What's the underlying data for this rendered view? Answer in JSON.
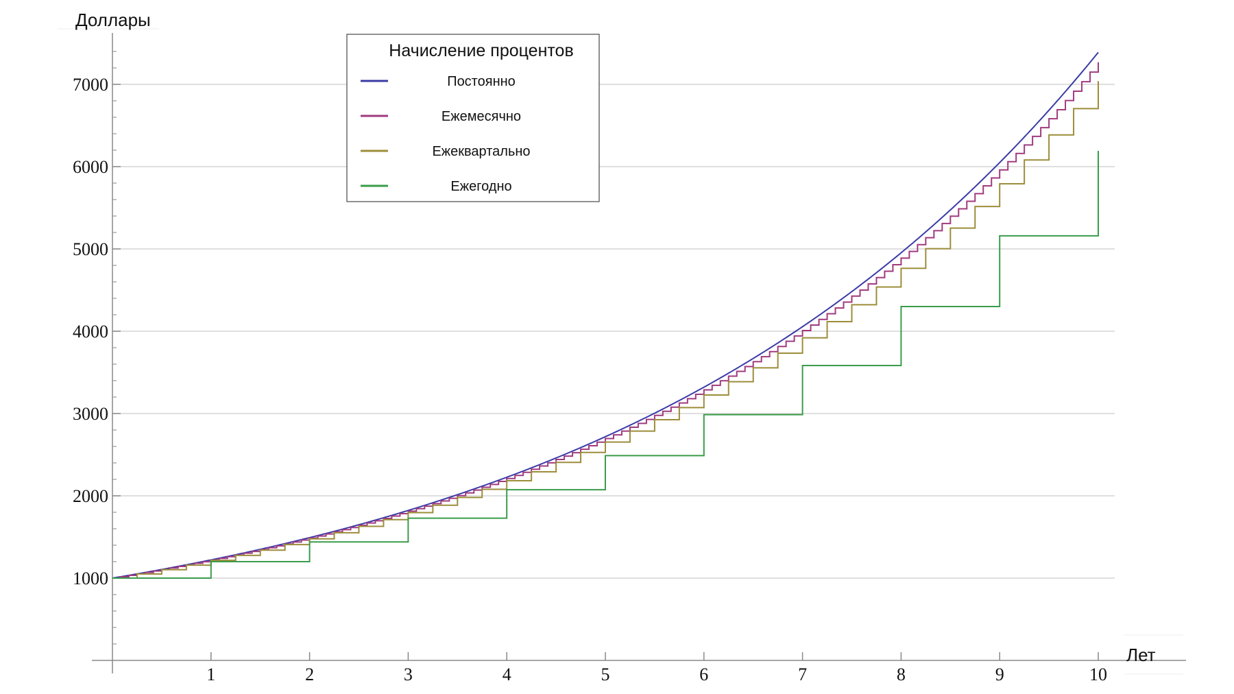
{
  "chart_data": {
    "type": "line",
    "xlabel": "Лет",
    "ylabel": "Доллары",
    "xlim": [
      0,
      10
    ],
    "ylim": [
      0,
      7400
    ],
    "x_ticks": [
      "1",
      "2",
      "3",
      "4",
      "5",
      "6",
      "7",
      "8",
      "9",
      "10"
    ],
    "y_ticks": [
      "1000",
      "2000",
      "3000",
      "4000",
      "5000",
      "6000",
      "7000"
    ],
    "grid": "horizontal",
    "legend": {
      "title": "Начисление процентов",
      "position": "top-center"
    },
    "principal": 1000,
    "annual_rate": 0.2,
    "series": [
      {
        "name": "Постоянно",
        "compounding": "continuous",
        "periods_per_year": 0,
        "color": "#3b3ba6",
        "final_value": 7389
      },
      {
        "name": "Ежемесячно",
        "compounding": "step",
        "periods_per_year": 12,
        "color": "#a03a7e",
        "final_value": 7268
      },
      {
        "name": "Ежеквартально",
        "compounding": "step",
        "periods_per_year": 4,
        "color": "#9c8d3a",
        "final_value": 7040
      },
      {
        "name": "Ежегодно",
        "compounding": "step",
        "periods_per_year": 1,
        "color": "#3a9c4a",
        "final_value": 6192
      }
    ]
  }
}
